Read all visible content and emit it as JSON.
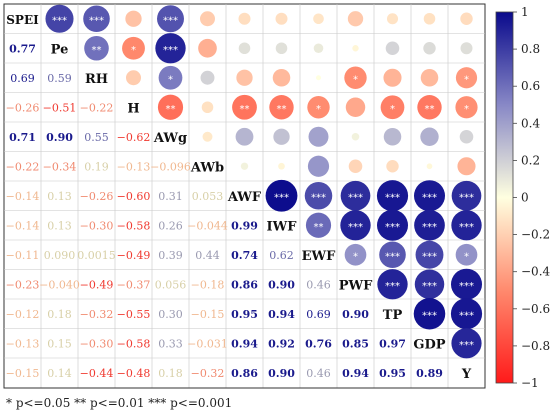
{
  "chart_data": {
    "type": "heatmap",
    "variables": [
      "SPEI",
      "Pe",
      "RH",
      "H",
      "AWg",
      "AWb",
      "AWF",
      "IWF",
      "EWF",
      "PWF",
      "TP",
      "GDP",
      "Y"
    ],
    "lower_values": [
      [],
      [
        "0.77"
      ],
      [
        "0.69",
        "0.59"
      ],
      [
        "−0.26",
        "−0.51",
        "−0.22"
      ],
      [
        "0.71",
        "0.90",
        "0.55",
        "−0.62"
      ],
      [
        "−0.22",
        "−0.34",
        "0.19",
        "−0.13",
        "−0.096"
      ],
      [
        "−0.14",
        "0.13",
        "−0.26",
        "−0.60",
        "0.31",
        "0.053"
      ],
      [
        "−0.14",
        "0.13",
        "−0.30",
        "−0.58",
        "0.26",
        "−0.044",
        "0.99"
      ],
      [
        "−0.11",
        "0.090",
        "0.0015",
        "−0.49",
        "0.39",
        "0.44",
        "0.74",
        "0.62"
      ],
      [
        "−0.23",
        "−0.040",
        "−0.49",
        "−0.37",
        "0.056",
        "−0.18",
        "0.86",
        "0.90",
        "0.46"
      ],
      [
        "−0.12",
        "0.18",
        "−0.32",
        "−0.55",
        "0.30",
        "−0.15",
        "0.95",
        "0.94",
        "0.69",
        "0.90"
      ],
      [
        "−0.13",
        "0.15",
        "−0.30",
        "−0.58",
        "0.33",
        "−0.031",
        "0.94",
        "0.92",
        "0.76",
        "0.85",
        "0.97"
      ],
      [
        "−0.15",
        "0.14",
        "−0.44",
        "−0.48",
        "0.18",
        "−0.32",
        "0.86",
        "0.90",
        "0.46",
        "0.94",
        "0.95",
        "0.89"
      ]
    ],
    "upper_circles": [
      {
        "row": 0,
        "col": 1,
        "r": 0.77,
        "stars": "***"
      },
      {
        "row": 0,
        "col": 2,
        "r": 0.69,
        "stars": "***"
      },
      {
        "row": 0,
        "col": 3,
        "r": -0.26,
        "stars": ""
      },
      {
        "row": 0,
        "col": 4,
        "r": 0.71,
        "stars": "***"
      },
      {
        "row": 0,
        "col": 5,
        "r": -0.22,
        "stars": ""
      },
      {
        "row": 0,
        "col": 6,
        "r": -0.14,
        "stars": ""
      },
      {
        "row": 0,
        "col": 7,
        "r": -0.14,
        "stars": ""
      },
      {
        "row": 0,
        "col": 8,
        "r": -0.11,
        "stars": ""
      },
      {
        "row": 0,
        "col": 9,
        "r": -0.23,
        "stars": ""
      },
      {
        "row": 0,
        "col": 10,
        "r": -0.12,
        "stars": ""
      },
      {
        "row": 0,
        "col": 11,
        "r": -0.13,
        "stars": ""
      },
      {
        "row": 0,
        "col": 12,
        "r": -0.15,
        "stars": ""
      },
      {
        "row": 1,
        "col": 2,
        "r": 0.59,
        "stars": "**"
      },
      {
        "row": 1,
        "col": 3,
        "r": -0.51,
        "stars": "*"
      },
      {
        "row": 1,
        "col": 4,
        "r": 0.9,
        "stars": "***"
      },
      {
        "row": 1,
        "col": 5,
        "r": -0.34,
        "stars": ""
      },
      {
        "row": 1,
        "col": 6,
        "r": 0.13,
        "stars": ""
      },
      {
        "row": 1,
        "col": 7,
        "r": 0.13,
        "stars": ""
      },
      {
        "row": 1,
        "col": 8,
        "r": 0.09,
        "stars": ""
      },
      {
        "row": 1,
        "col": 9,
        "r": -0.04,
        "stars": ""
      },
      {
        "row": 1,
        "col": 10,
        "r": 0.18,
        "stars": ""
      },
      {
        "row": 1,
        "col": 11,
        "r": 0.15,
        "stars": ""
      },
      {
        "row": 1,
        "col": 12,
        "r": 0.14,
        "stars": ""
      },
      {
        "row": 2,
        "col": 3,
        "r": -0.22,
        "stars": ""
      },
      {
        "row": 2,
        "col": 4,
        "r": 0.55,
        "stars": "*"
      },
      {
        "row": 2,
        "col": 5,
        "r": 0.19,
        "stars": ""
      },
      {
        "row": 2,
        "col": 6,
        "r": -0.26,
        "stars": ""
      },
      {
        "row": 2,
        "col": 7,
        "r": -0.3,
        "stars": ""
      },
      {
        "row": 2,
        "col": 8,
        "r": 0.0015,
        "stars": ""
      },
      {
        "row": 2,
        "col": 9,
        "r": -0.49,
        "stars": "*"
      },
      {
        "row": 2,
        "col": 10,
        "r": -0.32,
        "stars": ""
      },
      {
        "row": 2,
        "col": 11,
        "r": -0.3,
        "stars": ""
      },
      {
        "row": 2,
        "col": 12,
        "r": -0.44,
        "stars": "*"
      },
      {
        "row": 3,
        "col": 4,
        "r": -0.62,
        "stars": "**"
      },
      {
        "row": 3,
        "col": 5,
        "r": -0.13,
        "stars": ""
      },
      {
        "row": 3,
        "col": 6,
        "r": -0.6,
        "stars": "**"
      },
      {
        "row": 3,
        "col": 7,
        "r": -0.58,
        "stars": "**"
      },
      {
        "row": 3,
        "col": 8,
        "r": -0.49,
        "stars": "*"
      },
      {
        "row": 3,
        "col": 9,
        "r": -0.37,
        "stars": ""
      },
      {
        "row": 3,
        "col": 10,
        "r": -0.55,
        "stars": "*"
      },
      {
        "row": 3,
        "col": 11,
        "r": -0.58,
        "stars": "**"
      },
      {
        "row": 3,
        "col": 12,
        "r": -0.48,
        "stars": "*"
      },
      {
        "row": 4,
        "col": 5,
        "r": -0.096,
        "stars": ""
      },
      {
        "row": 4,
        "col": 6,
        "r": 0.31,
        "stars": ""
      },
      {
        "row": 4,
        "col": 7,
        "r": 0.26,
        "stars": ""
      },
      {
        "row": 4,
        "col": 8,
        "r": 0.39,
        "stars": ""
      },
      {
        "row": 4,
        "col": 9,
        "r": 0.056,
        "stars": ""
      },
      {
        "row": 4,
        "col": 10,
        "r": 0.3,
        "stars": ""
      },
      {
        "row": 4,
        "col": 11,
        "r": 0.33,
        "stars": ""
      },
      {
        "row": 4,
        "col": 12,
        "r": 0.18,
        "stars": ""
      },
      {
        "row": 5,
        "col": 6,
        "r": 0.053,
        "stars": ""
      },
      {
        "row": 5,
        "col": 7,
        "r": -0.044,
        "stars": ""
      },
      {
        "row": 5,
        "col": 8,
        "r": 0.44,
        "stars": ""
      },
      {
        "row": 5,
        "col": 9,
        "r": -0.18,
        "stars": ""
      },
      {
        "row": 5,
        "col": 10,
        "r": -0.15,
        "stars": ""
      },
      {
        "row": 5,
        "col": 11,
        "r": -0.031,
        "stars": ""
      },
      {
        "row": 5,
        "col": 12,
        "r": -0.32,
        "stars": ""
      },
      {
        "row": 6,
        "col": 7,
        "r": 0.99,
        "stars": "***"
      },
      {
        "row": 6,
        "col": 8,
        "r": 0.74,
        "stars": "***"
      },
      {
        "row": 6,
        "col": 9,
        "r": 0.86,
        "stars": "***"
      },
      {
        "row": 6,
        "col": 10,
        "r": 0.95,
        "stars": "***"
      },
      {
        "row": 6,
        "col": 11,
        "r": 0.94,
        "stars": "***"
      },
      {
        "row": 6,
        "col": 12,
        "r": 0.86,
        "stars": "***"
      },
      {
        "row": 7,
        "col": 8,
        "r": 0.62,
        "stars": "**"
      },
      {
        "row": 7,
        "col": 9,
        "r": 0.9,
        "stars": "***"
      },
      {
        "row": 7,
        "col": 10,
        "r": 0.94,
        "stars": "***"
      },
      {
        "row": 7,
        "col": 11,
        "r": 0.92,
        "stars": "***"
      },
      {
        "row": 7,
        "col": 12,
        "r": 0.9,
        "stars": "***"
      },
      {
        "row": 8,
        "col": 9,
        "r": 0.46,
        "stars": "*"
      },
      {
        "row": 8,
        "col": 10,
        "r": 0.69,
        "stars": "***"
      },
      {
        "row": 8,
        "col": 11,
        "r": 0.76,
        "stars": "***"
      },
      {
        "row": 8,
        "col": 12,
        "r": 0.46,
        "stars": "*"
      },
      {
        "row": 9,
        "col": 10,
        "r": 0.9,
        "stars": "***"
      },
      {
        "row": 9,
        "col": 11,
        "r": 0.85,
        "stars": "***"
      },
      {
        "row": 9,
        "col": 12,
        "r": 0.94,
        "stars": "***"
      },
      {
        "row": 10,
        "col": 11,
        "r": 0.97,
        "stars": "***"
      },
      {
        "row": 10,
        "col": 12,
        "r": 0.95,
        "stars": "***"
      },
      {
        "row": 11,
        "col": 12,
        "r": 0.89,
        "stars": "***"
      }
    ],
    "colorbar": {
      "range": [
        -1,
        1
      ],
      "ticks": [
        "1",
        "0.8",
        "0.6",
        "0.4",
        "0.2",
        "0",
        "−0.2",
        "−0.4",
        "−0.6",
        "−0.8",
        "−1"
      ],
      "colors": {
        "neg": "#ff1a1a",
        "mid": "#ffffe0",
        "pos": "#0a0a8c"
      }
    },
    "legend_text": "* p<=0.05  ** p<=0.01  *** p<=0.001"
  }
}
